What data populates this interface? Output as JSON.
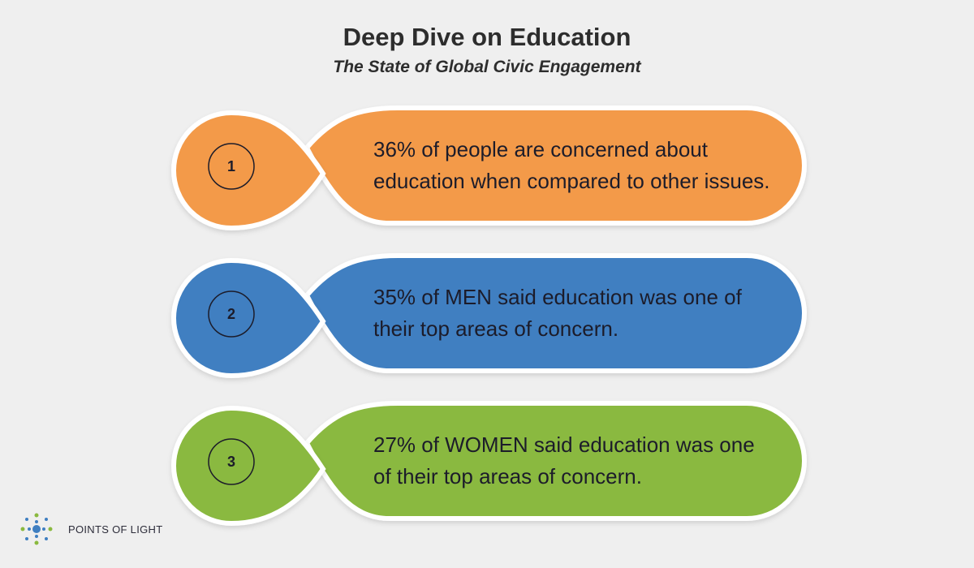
{
  "header": {
    "title": "Deep Dive on Education",
    "subtitle": "The State of Global Civic Engagement"
  },
  "items": [
    {
      "number": "1",
      "color": "#f39a48",
      "text": "36% of people are concerned about education when compared to other issues."
    },
    {
      "number": "2",
      "color": "#3f7fc1",
      "text": "35% of MEN said education was one of their top areas of concern."
    },
    {
      "number": "3",
      "color": "#8ab93f",
      "text": "27% of WOMEN said education was one of their top areas of concern."
    }
  ],
  "footer": {
    "logo_text": "POINTS OF LIGHT"
  }
}
